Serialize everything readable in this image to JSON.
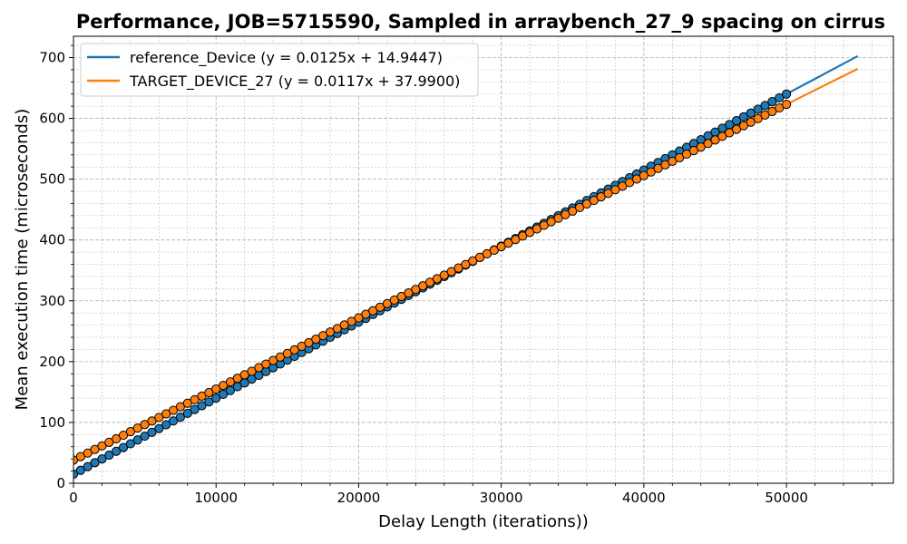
{
  "chart_data": {
    "type": "scatter",
    "title": "Performance, JOB=5715590, Sampled in arraybench_27_9 spacing on cirrus",
    "xlabel": "Delay Length (iterations))",
    "ylabel": "Mean execution time (microseconds)",
    "xlim": [
      0,
      57500
    ],
    "ylim": [
      0,
      735
    ],
    "x_ticks": [
      0,
      10000,
      20000,
      30000,
      40000,
      50000
    ],
    "y_ticks": [
      0,
      100,
      200,
      300,
      400,
      500,
      600,
      700
    ],
    "grid": true,
    "legend_position": "top-left",
    "sample_x_start": 0,
    "sample_x_end": 50000,
    "sample_x_step": 500,
    "fit_x_range": [
      0,
      55000
    ],
    "series": [
      {
        "name": "reference_Device",
        "legend": "reference_Device (y = 0.0125x + 14.9447)",
        "slope": 0.0125,
        "intercept": 14.9447,
        "color": "#1f77b4"
      },
      {
        "name": "TARGET_DEVICE_27",
        "legend": "TARGET_DEVICE_27 (y = 0.0117x + 37.9900)",
        "slope": 0.0117,
        "intercept": 37.99,
        "color": "#ff7f0e"
      }
    ]
  }
}
